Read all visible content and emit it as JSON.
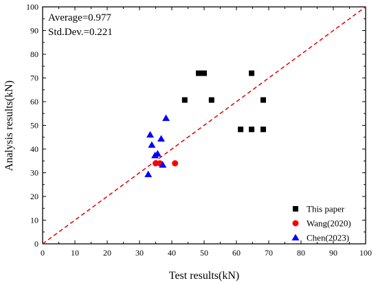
{
  "chart_data": {
    "type": "scatter",
    "xlabel": "Test results(kN)",
    "ylabel": "Analysis results(kN)",
    "xlim": [
      0,
      100
    ],
    "ylim": [
      0,
      100
    ],
    "xticks": [
      0,
      10,
      20,
      30,
      40,
      50,
      60,
      70,
      80,
      90,
      100
    ],
    "yticks": [
      0,
      10,
      20,
      30,
      40,
      50,
      60,
      70,
      80,
      90,
      100
    ],
    "grid": false,
    "legend_position": "bottom-right",
    "annotations": [
      "Average=0.977",
      "Std.Dev.=0.221"
    ],
    "reference_line": {
      "style": "dashed",
      "color": "#e00000",
      "from": [
        0,
        0
      ],
      "to": [
        100,
        100
      ]
    },
    "series": [
      {
        "name": "This paper",
        "marker": "square",
        "color": "#000000",
        "points": [
          [
            44,
            60.7
          ],
          [
            48.3,
            72
          ],
          [
            50,
            72
          ],
          [
            52.3,
            60.7
          ],
          [
            61.3,
            48.3
          ],
          [
            64.7,
            48.3
          ],
          [
            64.7,
            72
          ],
          [
            68.3,
            60.7
          ],
          [
            68.3,
            48.3
          ]
        ]
      },
      {
        "name": "Wang(2020)",
        "marker": "circle",
        "color": "#ff0000",
        "points": [
          [
            35,
            34
          ],
          [
            36.3,
            34
          ],
          [
            41,
            34
          ]
        ]
      },
      {
        "name": "Chen(2023)",
        "marker": "triangle",
        "color": "#0000ff",
        "points": [
          [
            32.7,
            29.3
          ],
          [
            33.3,
            46
          ],
          [
            33.8,
            41.7
          ],
          [
            34.8,
            37.3
          ],
          [
            35.6,
            38
          ],
          [
            36.7,
            44.3
          ],
          [
            37.2,
            33.3
          ],
          [
            38.2,
            53
          ]
        ]
      }
    ]
  }
}
